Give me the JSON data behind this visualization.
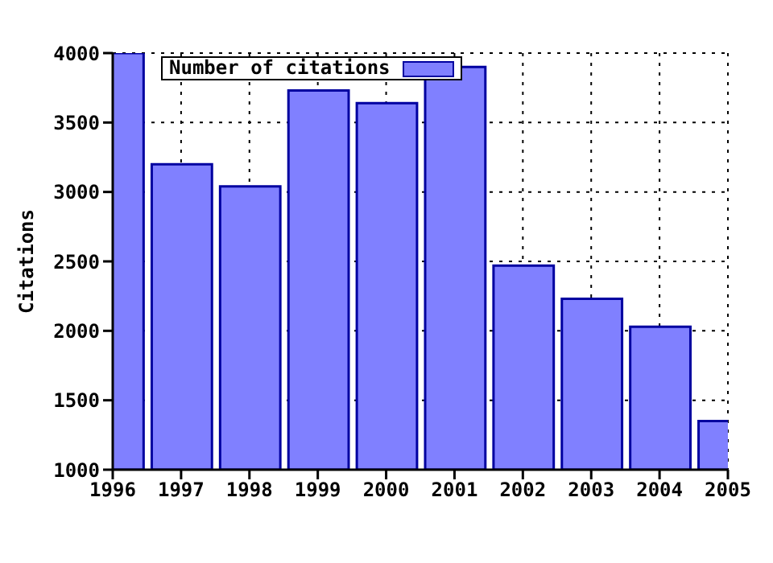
{
  "chart_data": {
    "type": "bar",
    "ylabel": "Citations",
    "x": [
      1996,
      1997,
      1998,
      1999,
      2000,
      2001,
      2002,
      2003,
      2004,
      2005
    ],
    "series": [
      {
        "name": "Number of citations",
        "color": "#8080ff",
        "values": [
          4000,
          3200,
          3040,
          3730,
          3640,
          3900,
          2470,
          2230,
          2030,
          1350
        ]
      }
    ],
    "xlim": [
      1996,
      2005
    ],
    "xticks": [
      1996,
      1997,
      1998,
      1999,
      2000,
      2001,
      2002,
      2003,
      2004,
      2005
    ],
    "ylim": [
      1000,
      4000
    ],
    "yticks": [
      1000,
      1500,
      2000,
      2500,
      3000,
      3500,
      4000
    ],
    "grid": true,
    "legend": "top left"
  }
}
